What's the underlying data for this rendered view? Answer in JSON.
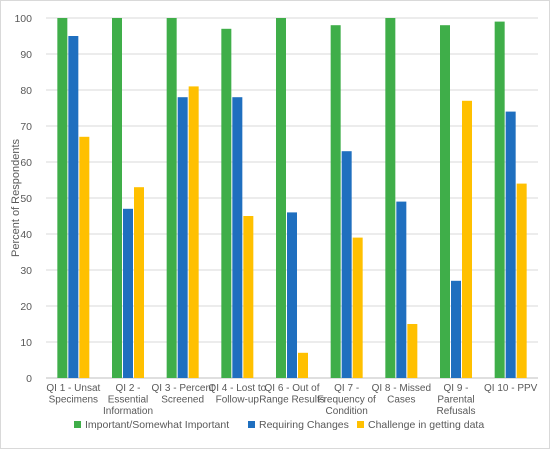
{
  "chart_data": {
    "type": "bar",
    "title": "",
    "xlabel": "",
    "ylabel": "Percent of Respondents",
    "ylim": [
      0,
      100
    ],
    "yticks": [
      0,
      10,
      20,
      30,
      40,
      50,
      60,
      70,
      80,
      90,
      100
    ],
    "grid": true,
    "legend_position": "bottom",
    "categories": [
      [
        "QI 1 - Unsat",
        "Specimens"
      ],
      [
        "QI 2 -",
        "Essential",
        "Information"
      ],
      [
        "QI 3 - Percent",
        "Screened"
      ],
      [
        "QI 4 - Lost to",
        "Follow-up"
      ],
      [
        "QI 6 - Out of",
        "Range Results"
      ],
      [
        "QI 7 -",
        "Frequency of",
        "Condition"
      ],
      [
        "QI 8 - Missed",
        "Cases"
      ],
      [
        "QI 9 -",
        "Parental",
        "Refusals"
      ],
      [
        "QI 10 - PPV"
      ]
    ],
    "series": [
      {
        "name": "Important/Somewhat Important",
        "color": "#3fae49",
        "values": [
          100,
          100,
          100,
          97,
          100,
          98,
          100,
          98,
          99
        ]
      },
      {
        "name": "Requiring Changes",
        "color": "#1f6fbf",
        "values": [
          95,
          47,
          78,
          78,
          46,
          63,
          49,
          27,
          74
        ]
      },
      {
        "name": "Challenge in getting data",
        "color": "#ffc000",
        "values": [
          67,
          53,
          81,
          45,
          7,
          39,
          15,
          77,
          54
        ]
      }
    ]
  }
}
